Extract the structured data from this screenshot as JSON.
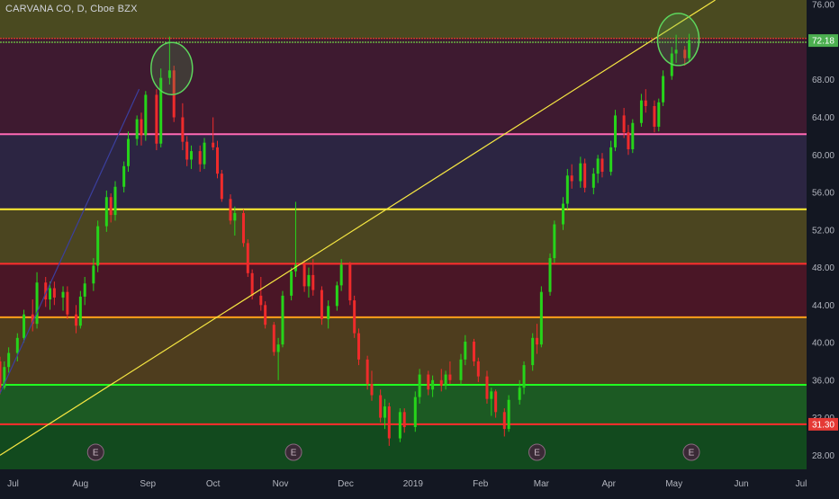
{
  "title": "CARVANA CO, D, Cboe BZX",
  "colors": {
    "background": "#131722",
    "candle_up": "#26d41a",
    "candle_down": "#ef2b2b",
    "trendline": "#f5e642",
    "axis_text": "#b2b5be",
    "circle": "#4caf50"
  },
  "price_labels": {
    "current": "72.18",
    "support": "31.30",
    "current_color": "#4caf50",
    "support_color": "#e53935"
  },
  "events": [
    {
      "label": "E",
      "x": "2018-08-08"
    },
    {
      "label": "E",
      "x": "2018-11-07"
    },
    {
      "label": "E",
      "x": "2019-02-27"
    },
    {
      "label": "E",
      "x": "2019-05-09"
    }
  ],
  "chart_data": {
    "type": "candlestick",
    "title": "CARVANA CO, D, Cboe BZX",
    "x_range": [
      "2018-06-25",
      "2019-07-01"
    ],
    "ylim": [
      26.5,
      76.5
    ],
    "y_ticks": [
      "28.00",
      "32.00",
      "36.00",
      "40.00",
      "44.00",
      "48.00",
      "52.00",
      "56.00",
      "60.00",
      "64.00",
      "68.00",
      "72.00",
      "76.00"
    ],
    "x_ticks": [
      {
        "label": "Jul",
        "date": "2018-07-01"
      },
      {
        "label": "Aug",
        "date": "2018-08-01"
      },
      {
        "label": "Sep",
        "date": "2018-09-01"
      },
      {
        "label": "Oct",
        "date": "2018-10-01"
      },
      {
        "label": "Nov",
        "date": "2018-11-01"
      },
      {
        "label": "Dec",
        "date": "2018-12-01"
      },
      {
        "label": "2019",
        "date": "2019-01-01"
      },
      {
        "label": "Feb",
        "date": "2019-02-01"
      },
      {
        "label": "Mar",
        "date": "2019-03-01"
      },
      {
        "label": "Apr",
        "date": "2019-04-01"
      },
      {
        "label": "May",
        "date": "2019-05-01"
      },
      {
        "label": "Jun",
        "date": "2019-06-01"
      },
      {
        "label": "Jul",
        "date": "2019-07-01"
      }
    ],
    "zones": [
      {
        "from": 72.4,
        "to": 76.5,
        "color": "#4a4a20"
      },
      {
        "from": 62.2,
        "to": 72.4,
        "color": "#3e1a30"
      },
      {
        "from": 54.2,
        "to": 62.2,
        "color": "#2c2542"
      },
      {
        "from": 48.4,
        "to": 54.2,
        "color": "#4b4520"
      },
      {
        "from": 42.7,
        "to": 48.4,
        "color": "#4a1626"
      },
      {
        "from": 35.5,
        "to": 42.7,
        "color": "#4e3d1e"
      },
      {
        "from": 31.3,
        "to": 35.5,
        "color": "#1c5a23"
      },
      {
        "from": 26.5,
        "to": 31.3,
        "color": "#124a1e"
      }
    ],
    "horizontal_lines": [
      {
        "price": 72.4,
        "color": "#ff3b30"
      },
      {
        "price": 72.0,
        "color": "#7cff4a"
      },
      {
        "price": 62.2,
        "color": "#ff69b4"
      },
      {
        "price": 54.2,
        "color": "#ffee33"
      },
      {
        "price": 48.4,
        "color": "#ff2d2d"
      },
      {
        "price": 42.7,
        "color": "#ff9f1a"
      },
      {
        "price": 35.5,
        "color": "#22ff22"
      },
      {
        "price": 31.3,
        "color": "#ff2d2d"
      }
    ],
    "trendlines": [
      {
        "from": {
          "date": "2018-06-25",
          "price": 28.0
        },
        "to": {
          "date": "2019-05-20",
          "price": 76.5
        },
        "color": "#f5e642"
      },
      {
        "from": {
          "date": "2018-06-25",
          "price": 34.6
        },
        "to": {
          "date": "2018-08-28",
          "price": 67.0
        },
        "color": "#3b3f9e"
      }
    ],
    "circles": [
      {
        "date": "2018-09-12",
        "price": 69.2
      },
      {
        "date": "2019-05-03",
        "price": 72.3
      }
    ],
    "series": [
      {
        "name": "CARVANA CO",
        "ohlc": [
          [
            "2018-06-25",
            38.0,
            38.5,
            34.5,
            35.2
          ],
          [
            "2018-06-27",
            35.2,
            38.0,
            35.0,
            37.4
          ],
          [
            "2018-06-29",
            37.4,
            39.5,
            36.8,
            38.9
          ],
          [
            "2018-07-03",
            38.9,
            41.0,
            38.0,
            40.5
          ],
          [
            "2018-07-06",
            40.5,
            43.5,
            40.0,
            43.0
          ],
          [
            "2018-07-10",
            43.0,
            44.6,
            41.2,
            42.0
          ],
          [
            "2018-07-12",
            42.0,
            47.5,
            41.5,
            46.4
          ],
          [
            "2018-07-16",
            46.4,
            47.0,
            43.8,
            44.6
          ],
          [
            "2018-07-18",
            44.6,
            46.5,
            43.5,
            45.8
          ],
          [
            "2018-07-20",
            45.8,
            46.5,
            44.0,
            44.8
          ],
          [
            "2018-07-24",
            44.8,
            46.0,
            43.4,
            45.4
          ],
          [
            "2018-07-26",
            45.4,
            46.0,
            42.5,
            43.0
          ],
          [
            "2018-07-30",
            43.0,
            44.0,
            41.0,
            41.8
          ],
          [
            "2018-08-01",
            41.8,
            45.5,
            41.5,
            44.9
          ],
          [
            "2018-08-03",
            44.9,
            47.0,
            44.0,
            46.3
          ],
          [
            "2018-08-07",
            46.3,
            49.0,
            45.5,
            48.2
          ],
          [
            "2018-08-09",
            48.2,
            53.0,
            47.5,
            52.4
          ],
          [
            "2018-08-13",
            52.4,
            56.2,
            51.8,
            55.5
          ],
          [
            "2018-08-15",
            55.5,
            55.9,
            52.8,
            53.6
          ],
          [
            "2018-08-17",
            53.6,
            57.2,
            53.0,
            56.6
          ],
          [
            "2018-08-21",
            56.6,
            59.3,
            56.0,
            58.8
          ],
          [
            "2018-08-23",
            58.8,
            62.5,
            58.2,
            61.7
          ],
          [
            "2018-08-27",
            61.7,
            64.2,
            61.0,
            63.8
          ],
          [
            "2018-08-29",
            63.8,
            64.5,
            61.0,
            62.1
          ],
          [
            "2018-08-31",
            62.1,
            66.8,
            61.5,
            66.4
          ],
          [
            "2018-09-05",
            66.4,
            67.0,
            60.5,
            61.2
          ],
          [
            "2018-09-07",
            61.2,
            69.2,
            60.8,
            68.2
          ],
          [
            "2018-09-11",
            68.2,
            72.6,
            67.5,
            69.0
          ],
          [
            "2018-09-13",
            69.0,
            69.5,
            63.5,
            64.0
          ],
          [
            "2018-09-17",
            64.0,
            65.5,
            60.5,
            61.4
          ],
          [
            "2018-09-19",
            61.4,
            62.0,
            58.8,
            59.5
          ],
          [
            "2018-09-21",
            59.5,
            61.0,
            58.5,
            60.4
          ],
          [
            "2018-09-25",
            60.4,
            61.0,
            58.2,
            59.0
          ],
          [
            "2018-09-27",
            59.0,
            61.8,
            58.5,
            61.3
          ],
          [
            "2018-10-01",
            61.3,
            64.0,
            60.5,
            60.8
          ],
          [
            "2018-10-03",
            60.8,
            61.5,
            57.5,
            58.0
          ],
          [
            "2018-10-05",
            58.0,
            58.4,
            55.0,
            55.3
          ],
          [
            "2018-10-09",
            55.3,
            55.8,
            52.6,
            53.0
          ],
          [
            "2018-10-11",
            53.0,
            54.5,
            51.4,
            53.8
          ],
          [
            "2018-10-15",
            53.8,
            54.2,
            50.2,
            50.6
          ],
          [
            "2018-10-17",
            50.6,
            51.0,
            47.0,
            47.4
          ],
          [
            "2018-10-19",
            47.4,
            47.8,
            44.6,
            45.0
          ],
          [
            "2018-10-23",
            45.0,
            47.0,
            43.4,
            44.0
          ],
          [
            "2018-10-25",
            44.0,
            44.4,
            41.5,
            41.9
          ],
          [
            "2018-10-29",
            41.9,
            42.2,
            38.6,
            39.0
          ],
          [
            "2018-10-31",
            39.0,
            40.5,
            36.0,
            39.8
          ],
          [
            "2018-11-02",
            39.8,
            45.5,
            39.5,
            45.0
          ],
          [
            "2018-11-06",
            45.0,
            48.0,
            44.5,
            47.6
          ],
          [
            "2018-11-08",
            47.6,
            55.0,
            47.0,
            48.3
          ],
          [
            "2018-11-12",
            48.3,
            48.8,
            45.4,
            46.0
          ],
          [
            "2018-11-14",
            46.0,
            48.0,
            44.8,
            47.2
          ],
          [
            "2018-11-16",
            47.2,
            48.9,
            45.0,
            45.6
          ],
          [
            "2018-11-20",
            45.6,
            46.0,
            41.9,
            42.5
          ],
          [
            "2018-11-23",
            42.5,
            44.5,
            41.5,
            43.9
          ],
          [
            "2018-11-27",
            43.9,
            46.5,
            43.4,
            46.1
          ],
          [
            "2018-11-29",
            46.1,
            48.9,
            45.5,
            48.3
          ],
          [
            "2018-12-03",
            48.3,
            48.6,
            44.0,
            44.5
          ],
          [
            "2018-12-05",
            44.5,
            45.0,
            40.5,
            41.0
          ],
          [
            "2018-12-07",
            41.0,
            41.5,
            37.6,
            38.2
          ],
          [
            "2018-12-11",
            38.2,
            38.6,
            35.0,
            35.6
          ],
          [
            "2018-12-13",
            35.6,
            37.0,
            33.8,
            34.4
          ],
          [
            "2018-12-17",
            34.4,
            35.0,
            31.5,
            32.0
          ],
          [
            "2018-12-19",
            32.0,
            34.0,
            30.8,
            33.2
          ],
          [
            "2018-12-21",
            33.2,
            33.6,
            29.0,
            29.8
          ],
          [
            "2018-12-26",
            29.8,
            33.0,
            29.4,
            32.6
          ],
          [
            "2018-12-28",
            32.6,
            33.0,
            30.4,
            31.0
          ],
          [
            "2019-01-02",
            31.0,
            34.8,
            30.5,
            34.2
          ],
          [
            "2019-01-04",
            34.2,
            37.2,
            33.5,
            36.6
          ],
          [
            "2019-01-08",
            36.6,
            37.0,
            34.4,
            35.0
          ],
          [
            "2019-01-10",
            35.0,
            36.5,
            34.2,
            36.0
          ],
          [
            "2019-01-14",
            36.0,
            37.2,
            34.8,
            35.4
          ],
          [
            "2019-01-16",
            35.4,
            37.0,
            35.0,
            36.6
          ],
          [
            "2019-01-18",
            36.6,
            38.0,
            35.6,
            36.0
          ],
          [
            "2019-01-23",
            36.0,
            38.8,
            35.5,
            38.2
          ],
          [
            "2019-01-25",
            38.2,
            40.8,
            37.6,
            40.1
          ],
          [
            "2019-01-29",
            40.1,
            40.4,
            37.5,
            38.0
          ],
          [
            "2019-01-31",
            38.0,
            38.4,
            35.8,
            36.4
          ],
          [
            "2019-02-04",
            36.4,
            37.0,
            33.5,
            34.0
          ],
          [
            "2019-02-06",
            34.0,
            35.2,
            32.2,
            34.8
          ],
          [
            "2019-02-08",
            34.8,
            35.0,
            32.0,
            32.6
          ],
          [
            "2019-02-12",
            32.6,
            33.0,
            30.0,
            30.8
          ],
          [
            "2019-02-14",
            30.8,
            34.4,
            30.5,
            33.9
          ],
          [
            "2019-02-19",
            33.9,
            36.0,
            33.4,
            35.2
          ],
          [
            "2019-02-21",
            35.2,
            38.0,
            34.5,
            37.6
          ],
          [
            "2019-02-25",
            37.6,
            41.0,
            37.0,
            40.5
          ],
          [
            "2019-02-27",
            40.5,
            42.0,
            38.8,
            39.8
          ],
          [
            "2019-03-01",
            39.8,
            46.0,
            39.5,
            45.4
          ],
          [
            "2019-03-05",
            45.4,
            49.5,
            45.0,
            49.0
          ],
          [
            "2019-03-07",
            49.0,
            53.0,
            48.5,
            52.6
          ],
          [
            "2019-03-11",
            52.6,
            55.5,
            52.0,
            54.8
          ],
          [
            "2019-03-13",
            54.8,
            58.5,
            54.2,
            57.8
          ],
          [
            "2019-03-15",
            57.8,
            59.0,
            56.4,
            57.2
          ],
          [
            "2019-03-19",
            57.2,
            59.8,
            56.5,
            59.1
          ],
          [
            "2019-03-21",
            59.1,
            59.6,
            56.0,
            56.5
          ],
          [
            "2019-03-25",
            56.5,
            58.6,
            55.8,
            58.0
          ],
          [
            "2019-03-27",
            58.0,
            60.0,
            57.0,
            59.6
          ],
          [
            "2019-03-29",
            59.6,
            60.2,
            57.6,
            58.2
          ],
          [
            "2019-04-02",
            58.2,
            61.5,
            57.8,
            60.8
          ],
          [
            "2019-04-04",
            60.8,
            64.8,
            60.4,
            64.2
          ],
          [
            "2019-04-08",
            64.2,
            65.0,
            61.8,
            62.4
          ],
          [
            "2019-04-10",
            62.4,
            63.2,
            60.0,
            60.6
          ],
          [
            "2019-04-12",
            60.6,
            63.8,
            60.2,
            63.4
          ],
          [
            "2019-04-16",
            63.4,
            66.5,
            63.0,
            65.8
          ],
          [
            "2019-04-18",
            65.8,
            67.0,
            64.5,
            65.2
          ],
          [
            "2019-04-22",
            65.2,
            65.8,
            62.4,
            63.0
          ],
          [
            "2019-04-24",
            63.0,
            66.0,
            62.5,
            65.6
          ],
          [
            "2019-04-26",
            65.6,
            69.0,
            65.2,
            68.4
          ],
          [
            "2019-04-30",
            68.4,
            71.5,
            68.0,
            70.8
          ],
          [
            "2019-05-02",
            70.8,
            72.8,
            69.8,
            71.2
          ],
          [
            "2019-05-06",
            71.2,
            71.6,
            69.5,
            70.3
          ],
          [
            "2019-05-08",
            70.3,
            72.9,
            70.0,
            72.2
          ]
        ]
      }
    ]
  }
}
